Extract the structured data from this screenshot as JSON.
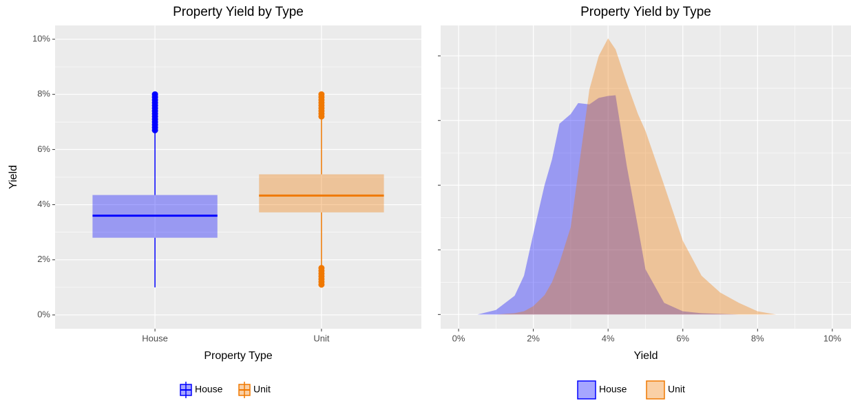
{
  "chart_data": [
    {
      "type": "box",
      "title": "Property Yield by Type",
      "xlabel": "Property Type",
      "ylabel": "Yield",
      "categories": [
        "House",
        "Unit"
      ],
      "ylim": [
        -0.5,
        10.5
      ],
      "yticks": [
        {
          "value": 0,
          "label": "0%"
        },
        {
          "value": 2,
          "label": "2%"
        },
        {
          "value": 4,
          "label": "4%"
        },
        {
          "value": 6,
          "label": "6%"
        },
        {
          "value": 8,
          "label": "8%"
        },
        {
          "value": 10,
          "label": "10%"
        }
      ],
      "grid": true,
      "legend": "bottom",
      "alpha": 0.35,
      "series": [
        {
          "name": "House",
          "color": "#0000ff",
          "whisker_low": 1.0,
          "q1": 2.8,
          "median": 3.6,
          "q3": 4.35,
          "whisker_high": 6.6,
          "outliers": [
            6.7,
            6.8,
            6.9,
            7.0,
            7.1,
            7.2,
            7.3,
            7.4,
            7.5,
            7.6,
            7.7,
            7.8,
            7.9,
            8.0
          ]
        },
        {
          "name": "Unit",
          "color": "#f07800",
          "whisker_low": 1.8,
          "q1": 3.72,
          "median": 4.33,
          "q3": 5.1,
          "whisker_high": 7.1,
          "outliers": [
            1.1,
            1.2,
            1.3,
            1.4,
            1.5,
            1.6,
            1.7,
            7.2,
            7.3,
            7.4,
            7.5,
            7.6,
            7.7,
            7.8,
            7.9,
            8.0
          ]
        }
      ]
    },
    {
      "type": "density",
      "title": "Property Yield by Type",
      "xlabel": "Yield",
      "x": [
        0,
        0.5,
        1,
        1.5,
        1.75,
        2,
        2.3,
        2.5,
        2.7,
        3,
        3.2,
        3.5,
        3.75,
        4,
        4.2,
        4.5,
        4.8,
        5,
        5.5,
        6,
        6.5,
        7,
        7.5,
        8,
        8.5,
        10
      ],
      "xlim": [
        -0.48,
        10.5
      ],
      "xticks": [
        {
          "value": 0,
          "label": "0%"
        },
        {
          "value": 2,
          "label": "2%"
        },
        {
          "value": 4,
          "label": "4%"
        },
        {
          "value": 6,
          "label": "6%"
        },
        {
          "value": 8,
          "label": "8%"
        },
        {
          "value": 10,
          "label": "10%"
        }
      ],
      "ylim": [
        -0.022,
        0.447
      ],
      "yticks": [
        0,
        0.1,
        0.2,
        0.3,
        0.4
      ],
      "grid": true,
      "legend": "bottom",
      "alpha": 0.35,
      "series": [
        {
          "name": "House",
          "color": "#0000ff",
          "values": [
            0,
            0,
            0.007,
            0.029,
            0.06,
            0.125,
            0.2,
            0.24,
            0.295,
            0.31,
            0.327,
            0.325,
            0.335,
            0.338,
            0.339,
            0.23,
            0.135,
            0.07,
            0.018,
            0.005,
            0.002,
            0.001,
            0,
            0,
            0,
            0
          ]
        },
        {
          "name": "Unit",
          "color": "#f07800",
          "values": [
            0,
            0,
            0,
            0.002,
            0.005,
            0.013,
            0.03,
            0.05,
            0.08,
            0.135,
            0.22,
            0.348,
            0.4,
            0.427,
            0.41,
            0.358,
            0.31,
            0.284,
            0.2,
            0.114,
            0.06,
            0.034,
            0.018,
            0.005,
            0,
            0
          ]
        }
      ]
    }
  ]
}
